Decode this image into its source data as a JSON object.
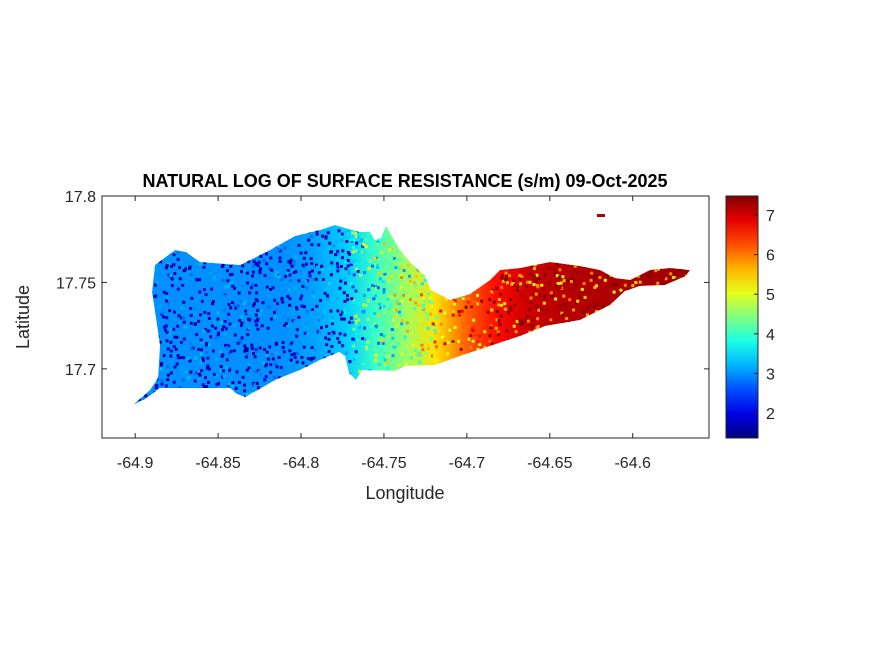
{
  "chart_data": {
    "type": "heatmap",
    "title": "NATURAL LOG OF SURFACE RESISTANCE (s/m) 09-Oct-2025",
    "xlabel": "Longitude",
    "ylabel": "Latitude",
    "xlim": [
      -64.92,
      -64.554
    ],
    "ylim": [
      17.66,
      17.8
    ],
    "xticks": [
      -64.9,
      -64.85,
      -64.8,
      -64.75,
      -64.7,
      -64.65,
      -64.6
    ],
    "xtick_labels": [
      "-64.9",
      "-64.85",
      "-64.8",
      "-64.75",
      "-64.7",
      "-64.65",
      "-64.6"
    ],
    "yticks": [
      17.7,
      17.75,
      17.8
    ],
    "ytick_labels": [
      "17.7",
      "17.75",
      "17.8"
    ],
    "colorbar": {
      "colormap": "jet",
      "clim": [
        1.37,
        7.48
      ],
      "ticks": [
        2,
        3,
        4,
        5,
        6,
        7
      ],
      "tick_labels": [
        "2",
        "3",
        "4",
        "5",
        "6",
        "7"
      ]
    },
    "value_trend_by_longitude": {
      "lon": [
        -64.9,
        -64.8,
        -64.77,
        -64.75,
        -64.73,
        -64.71,
        -64.69,
        -64.66,
        -64.57
      ],
      "value": [
        3.0,
        3.0,
        3.4,
        4.2,
        4.8,
        5.8,
        6.5,
        7.1,
        7.3
      ]
    },
    "grid": false,
    "legend": "none"
  }
}
